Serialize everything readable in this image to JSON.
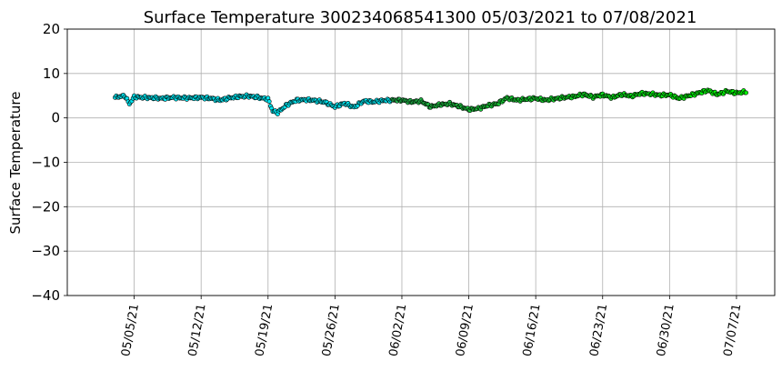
{
  "chart_data": {
    "type": "scatter",
    "title": "Surface Temperature 300234068541300  05/03/2021 to 07/08/2021",
    "xlabel": "",
    "ylabel": "Surface Temperature",
    "ylim": [
      -40,
      20
    ],
    "yticks": [
      20,
      10,
      0,
      -10,
      -20,
      -30,
      -40
    ],
    "ytick_labels": [
      "20",
      "10",
      "0",
      "−10",
      "−20",
      "−30",
      "−40"
    ],
    "xlim": [
      "2021-04-28",
      "2021-07-11"
    ],
    "xticks": [
      "2021-05-05",
      "2021-05-12",
      "2021-05-19",
      "2021-05-26",
      "2021-06-02",
      "2021-06-09",
      "2021-06-16",
      "2021-06-23",
      "2021-06-30",
      "2021-07-07"
    ],
    "xtick_labels": [
      "05/05/21",
      "05/12/21",
      "05/19/21",
      "05/26/21",
      "06/02/21",
      "06/09/21",
      "06/16/21",
      "06/23/21",
      "06/30/21",
      "07/07/21"
    ],
    "grid": true,
    "marker_edge_color": "#000000",
    "colors": {
      "early": "#00e5f0",
      "middle": "#22b14c",
      "late": "#00ff00"
    },
    "series": [
      {
        "x": [
          "2021-05-03",
          "2021-05-04",
          "2021-05-04 12:00",
          "2021-05-05",
          "2021-05-06",
          "2021-05-07",
          "2021-05-08",
          "2021-05-09",
          "2021-05-10",
          "2021-05-11",
          "2021-05-12",
          "2021-05-13",
          "2021-05-14",
          "2021-05-15",
          "2021-05-16",
          "2021-05-17",
          "2021-05-18",
          "2021-05-19",
          "2021-05-19 12:00",
          "2021-05-20",
          "2021-05-21",
          "2021-05-22",
          "2021-05-23",
          "2021-05-24",
          "2021-05-25",
          "2021-05-26",
          "2021-05-27",
          "2021-05-28",
          "2021-05-29",
          "2021-05-30",
          "2021-05-31",
          "2021-06-01",
          "2021-06-02",
          "2021-06-03",
          "2021-06-04",
          "2021-06-05",
          "2021-06-06",
          "2021-06-07",
          "2021-06-08",
          "2021-06-09",
          "2021-06-10",
          "2021-06-11",
          "2021-06-12",
          "2021-06-13",
          "2021-06-14",
          "2021-06-15",
          "2021-06-16",
          "2021-06-17",
          "2021-06-18",
          "2021-06-19",
          "2021-06-20",
          "2021-06-21",
          "2021-06-22",
          "2021-06-23",
          "2021-06-24",
          "2021-06-25",
          "2021-06-26",
          "2021-06-27",
          "2021-06-28",
          "2021-06-29",
          "2021-06-30",
          "2021-07-01",
          "2021-07-02",
          "2021-07-03",
          "2021-07-04",
          "2021-07-05",
          "2021-07-06",
          "2021-07-07",
          "2021-07-08"
        ],
        "y": [
          4.6,
          5.0,
          3.2,
          4.7,
          4.6,
          4.5,
          4.4,
          4.6,
          4.5,
          4.5,
          4.6,
          4.4,
          4.0,
          4.5,
          4.8,
          4.9,
          4.6,
          4.2,
          1.5,
          1.2,
          3.0,
          4.0,
          4.1,
          3.9,
          3.5,
          2.5,
          3.3,
          2.4,
          3.8,
          3.6,
          3.9,
          4.0,
          4.0,
          3.6,
          3.8,
          2.5,
          3.0,
          3.2,
          2.6,
          1.9,
          2.1,
          2.8,
          3.2,
          4.5,
          4.0,
          4.2,
          4.4,
          4.0,
          4.3,
          4.6,
          4.8,
          5.3,
          4.7,
          5.2,
          4.6,
          5.3,
          4.9,
          5.5,
          5.4,
          5.1,
          5.2,
          4.4,
          5.0,
          5.6,
          6.2,
          5.3,
          6.0,
          5.6,
          5.9
        ]
      }
    ]
  }
}
